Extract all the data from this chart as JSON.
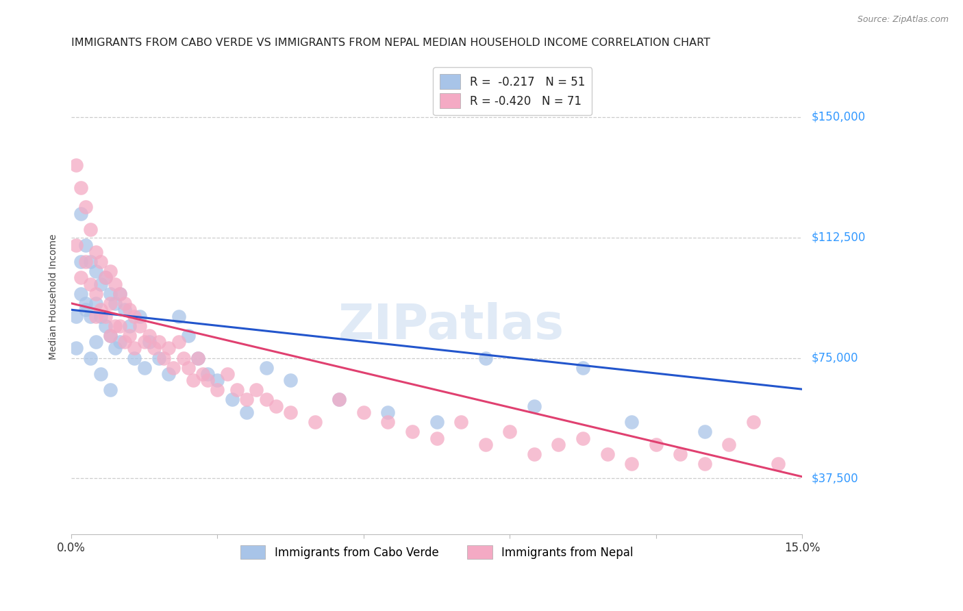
{
  "title": "IMMIGRANTS FROM CABO VERDE VS IMMIGRANTS FROM NEPAL MEDIAN HOUSEHOLD INCOME CORRELATION CHART",
  "source": "Source: ZipAtlas.com",
  "ylabel": "Median Household Income",
  "xlim": [
    0.0,
    0.15
  ],
  "ylim": [
    20000,
    168000
  ],
  "yticks": [
    37500,
    75000,
    112500,
    150000
  ],
  "xticks": [
    0.0,
    0.03,
    0.06,
    0.09,
    0.12,
    0.15
  ],
  "ytick_labels": [
    "$37,500",
    "$75,000",
    "$112,500",
    "$150,000"
  ],
  "cabo_verde_color": "#a8c4e8",
  "nepal_color": "#f4aac4",
  "cabo_verde_line_color": "#2255cc",
  "nepal_line_color": "#e04070",
  "r_cabo_verde": -0.217,
  "n_cabo_verde": 51,
  "r_nepal": -0.42,
  "n_nepal": 71,
  "cabo_verde_intercept": 90000,
  "cabo_verde_slope": -165000,
  "nepal_intercept": 92000,
  "nepal_slope": -360000,
  "cabo_verde_x": [
    0.001,
    0.001,
    0.002,
    0.002,
    0.003,
    0.003,
    0.004,
    0.004,
    0.005,
    0.005,
    0.005,
    0.006,
    0.006,
    0.007,
    0.007,
    0.008,
    0.008,
    0.009,
    0.009,
    0.01,
    0.01,
    0.011,
    0.012,
    0.013,
    0.014,
    0.015,
    0.016,
    0.018,
    0.02,
    0.022,
    0.024,
    0.026,
    0.028,
    0.03,
    0.033,
    0.036,
    0.04,
    0.045,
    0.055,
    0.065,
    0.075,
    0.085,
    0.095,
    0.105,
    0.115,
    0.13,
    0.002,
    0.003,
    0.004,
    0.006,
    0.008
  ],
  "cabo_verde_y": [
    88000,
    78000,
    120000,
    95000,
    110000,
    92000,
    105000,
    88000,
    102000,
    92000,
    80000,
    98000,
    88000,
    100000,
    85000,
    95000,
    82000,
    92000,
    78000,
    95000,
    80000,
    90000,
    85000,
    75000,
    88000,
    72000,
    80000,
    75000,
    70000,
    88000,
    82000,
    75000,
    70000,
    68000,
    62000,
    58000,
    72000,
    68000,
    62000,
    58000,
    55000,
    75000,
    60000,
    72000,
    55000,
    52000,
    105000,
    90000,
    75000,
    70000,
    65000
  ],
  "nepal_x": [
    0.001,
    0.001,
    0.002,
    0.002,
    0.003,
    0.003,
    0.004,
    0.004,
    0.005,
    0.005,
    0.005,
    0.006,
    0.006,
    0.007,
    0.007,
    0.008,
    0.008,
    0.008,
    0.009,
    0.009,
    0.01,
    0.01,
    0.011,
    0.011,
    0.012,
    0.012,
    0.013,
    0.013,
    0.014,
    0.015,
    0.016,
    0.017,
    0.018,
    0.019,
    0.02,
    0.021,
    0.022,
    0.023,
    0.024,
    0.025,
    0.026,
    0.027,
    0.028,
    0.03,
    0.032,
    0.034,
    0.036,
    0.038,
    0.04,
    0.042,
    0.045,
    0.05,
    0.055,
    0.06,
    0.065,
    0.07,
    0.075,
    0.08,
    0.085,
    0.09,
    0.095,
    0.1,
    0.105,
    0.11,
    0.115,
    0.12,
    0.125,
    0.13,
    0.135,
    0.14,
    0.145
  ],
  "nepal_y": [
    135000,
    110000,
    128000,
    100000,
    122000,
    105000,
    115000,
    98000,
    108000,
    95000,
    88000,
    105000,
    90000,
    100000,
    88000,
    102000,
    92000,
    82000,
    98000,
    85000,
    95000,
    85000,
    92000,
    80000,
    90000,
    82000,
    88000,
    78000,
    85000,
    80000,
    82000,
    78000,
    80000,
    75000,
    78000,
    72000,
    80000,
    75000,
    72000,
    68000,
    75000,
    70000,
    68000,
    65000,
    70000,
    65000,
    62000,
    65000,
    62000,
    60000,
    58000,
    55000,
    62000,
    58000,
    55000,
    52000,
    50000,
    55000,
    48000,
    52000,
    45000,
    48000,
    50000,
    45000,
    42000,
    48000,
    45000,
    42000,
    48000,
    55000,
    42000
  ],
  "watermark": "ZIPatlas",
  "background_color": "#ffffff",
  "grid_color": "#cccccc",
  "axis_label_color": "#3399ff",
  "title_color": "#222222",
  "title_fontsize": 11.5,
  "axis_label_fontsize": 10,
  "tick_fontsize": 12,
  "legend_fontsize": 12
}
